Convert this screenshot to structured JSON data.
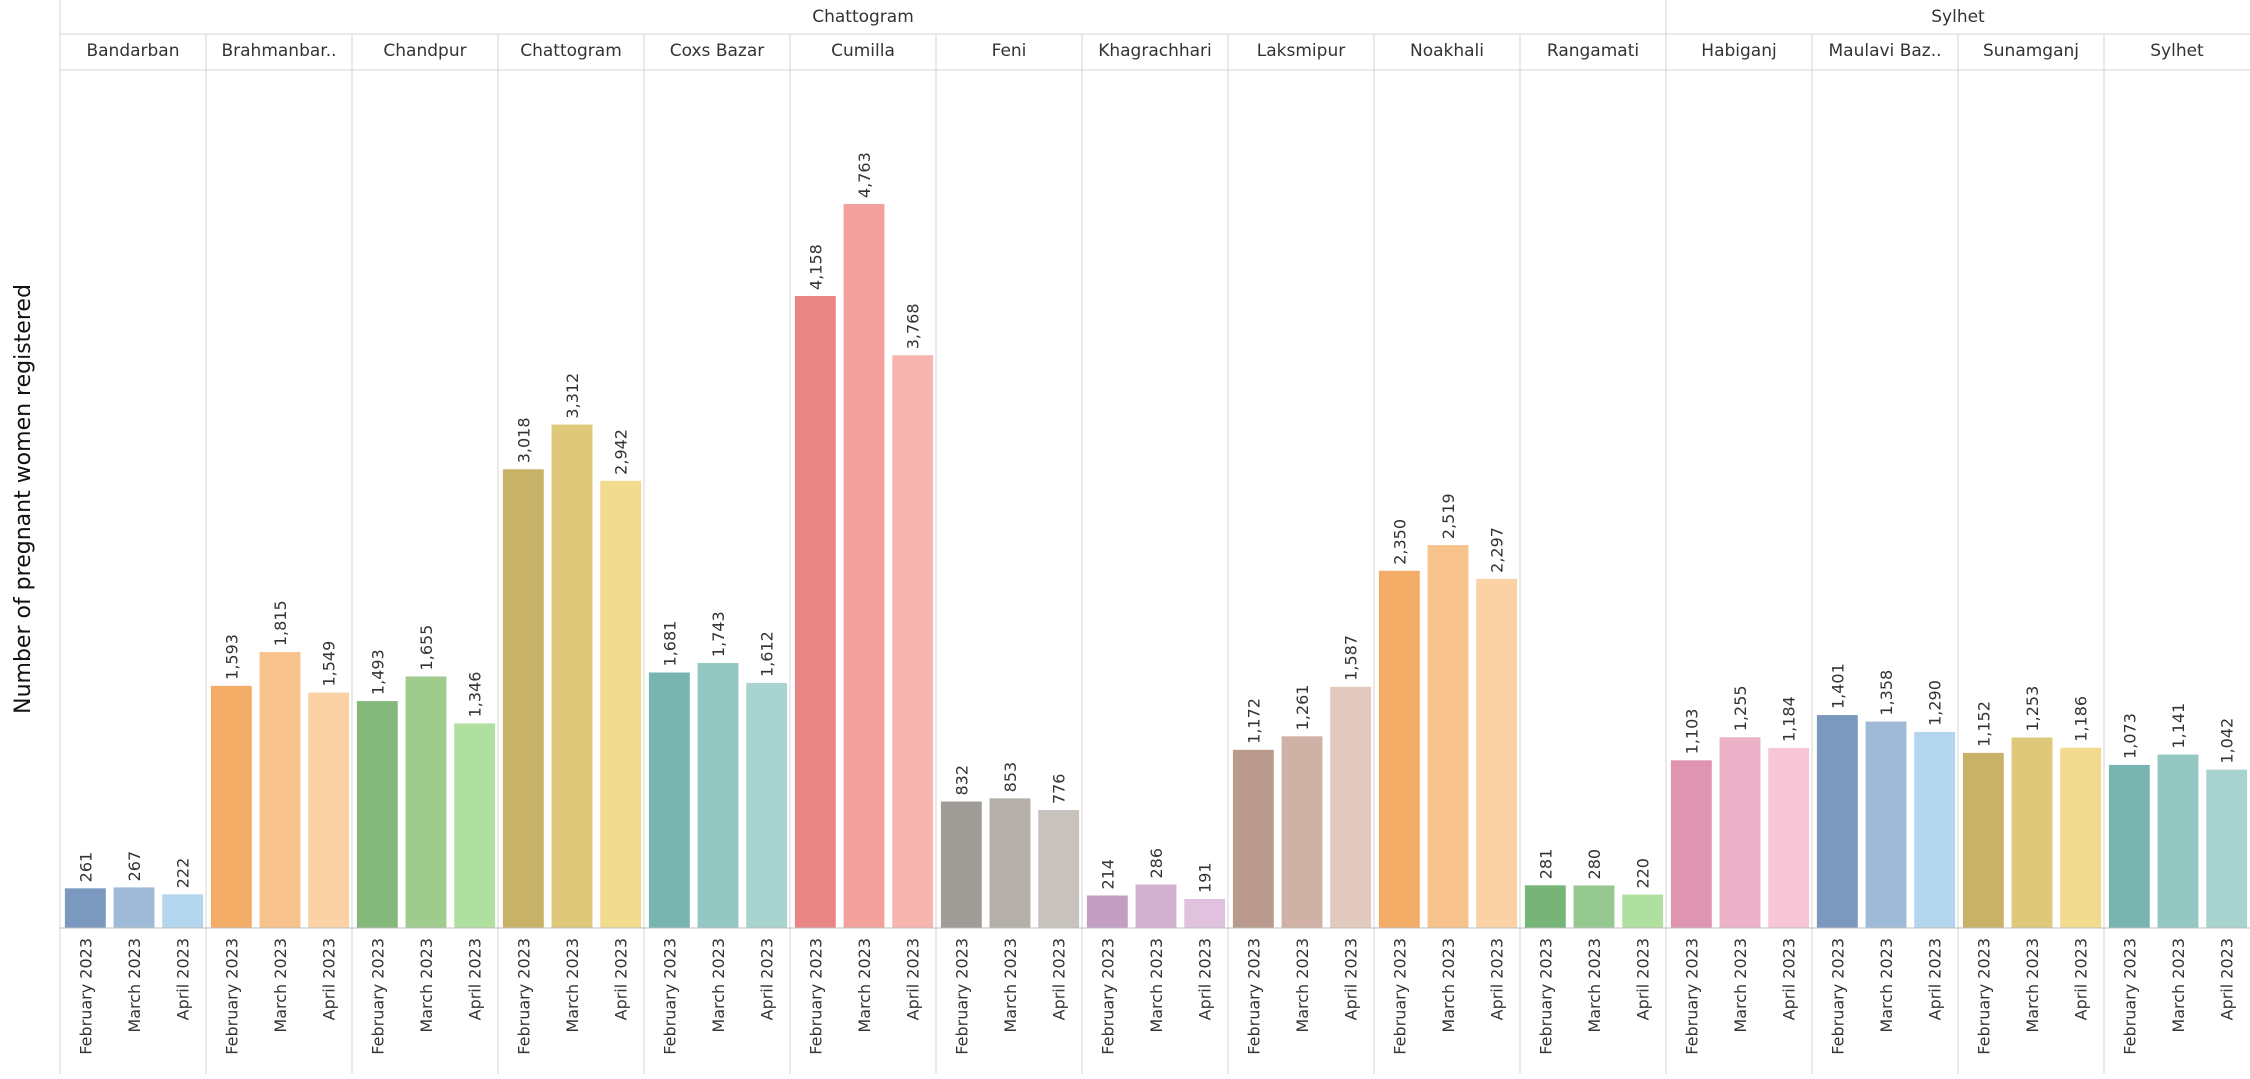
{
  "chart_data": {
    "type": "bar",
    "ylabel": "Number of pregnant women registered",
    "ylim": [
      0,
      5000
    ],
    "grid": false,
    "legend": "none",
    "months": [
      "February 2023",
      "March 2023",
      "April 2023"
    ],
    "divisions": [
      {
        "name": "Chattogram",
        "districts": [
          {
            "name": "Bandarban",
            "values": [
              261,
              267,
              222
            ],
            "labels": [
              "261",
              "267",
              "222"
            ],
            "colors": [
              "#7b99bf",
              "#9fbad6",
              "#b4d5ee"
            ]
          },
          {
            "name": "Brahmanbar..",
            "values": [
              1593,
              1815,
              1549
            ],
            "labels": [
              "1,593",
              "1,815",
              "1,549"
            ],
            "colors": [
              "#f3ad66",
              "#f8c28c",
              "#fbd2a5"
            ]
          },
          {
            "name": "Chandpur",
            "values": [
              1493,
              1655,
              1346
            ],
            "labels": [
              "1,493",
              "1,655",
              "1,346"
            ],
            "colors": [
              "#85b97c",
              "#9fcc8d",
              "#b0e0a0"
            ]
          },
          {
            "name": "Chattogram",
            "values": [
              3018,
              3312,
              2942
            ],
            "labels": [
              "3,018",
              "3,312",
              "2,942"
            ],
            "colors": [
              "#c8b268",
              "#dfc87a",
              "#f2da8e"
            ]
          },
          {
            "name": "Coxs Bazar",
            "values": [
              1681,
              1743,
              1612
            ],
            "labels": [
              "1,681",
              "1,743",
              "1,612"
            ],
            "colors": [
              "#78b4b0",
              "#94c7c2",
              "#a8d3cf"
            ]
          },
          {
            "name": "Cumilla",
            "values": [
              4158,
              4763,
              3768
            ],
            "labels": [
              "4,158",
              "4,763",
              "3,768"
            ],
            "colors": [
              "#e98585",
              "#f2a19c",
              "#f8b5b0"
            ]
          },
          {
            "name": "Feni",
            "values": [
              832,
              853,
              776
            ],
            "labels": [
              "832",
              "853",
              "776"
            ],
            "colors": [
              "#a09c97",
              "#b5afa9",
              "#c8c2bd"
            ]
          },
          {
            "name": "Khagrachhari",
            "values": [
              214,
              286,
              191
            ],
            "labels": [
              "214",
              "286",
              "191"
            ],
            "colors": [
              "#c29ec2",
              "#d2b0d0",
              "#e1c2de"
            ]
          },
          {
            "name": "Laksmipur",
            "values": [
              1172,
              1261,
              1587
            ],
            "labels": [
              "1,172",
              "1,261",
              "1,587"
            ],
            "colors": [
              "#b99a8c",
              "#cfb2a5",
              "#e2c9bd"
            ]
          },
          {
            "name": "Noakhali",
            "values": [
              2350,
              2519,
              2297
            ],
            "labels": [
              "2,350",
              "2,519",
              "2,297"
            ],
            "colors": [
              "#f3ad66",
              "#f8c28c",
              "#fbd2a5"
            ]
          },
          {
            "name": "Rangamati",
            "values": [
              281,
              280,
              220
            ],
            "labels": [
              "281",
              "280",
              "220"
            ],
            "colors": [
              "#76b577",
              "#94c88f",
              "#b0e0a0"
            ]
          }
        ]
      },
      {
        "name": "Sylhet",
        "districts": [
          {
            "name": "Habiganj",
            "values": [
              1103,
              1255,
              1184
            ],
            "labels": [
              "1,103",
              "1,255",
              "1,184"
            ],
            "colors": [
              "#df94af",
              "#ebb1c6",
              "#f6c6d7"
            ]
          },
          {
            "name": "Maulavi Baz..",
            "values": [
              1401,
              1358,
              1290
            ],
            "labels": [
              "1,401",
              "1,358",
              "1,290"
            ],
            "colors": [
              "#7b99bf",
              "#9fbad6",
              "#b4d5ee"
            ]
          },
          {
            "name": "Sunamganj",
            "values": [
              1152,
              1253,
              1186
            ],
            "labels": [
              "1,152",
              "1,253",
              "1,186"
            ],
            "colors": [
              "#c8b268",
              "#dfc87a",
              "#f2da8e"
            ]
          },
          {
            "name": "Sylhet",
            "values": [
              1073,
              1141,
              1042
            ],
            "labels": [
              "1,073",
              "1,141",
              "1,042"
            ],
            "colors": [
              "#78b4b0",
              "#94c7c2",
              "#a8d3cf"
            ]
          }
        ]
      }
    ]
  },
  "style": {
    "text_color": "#333333",
    "axis_title_color": "#111111",
    "divider_color": "#d4d4d4",
    "baseline_color": "#bdbdbd"
  }
}
